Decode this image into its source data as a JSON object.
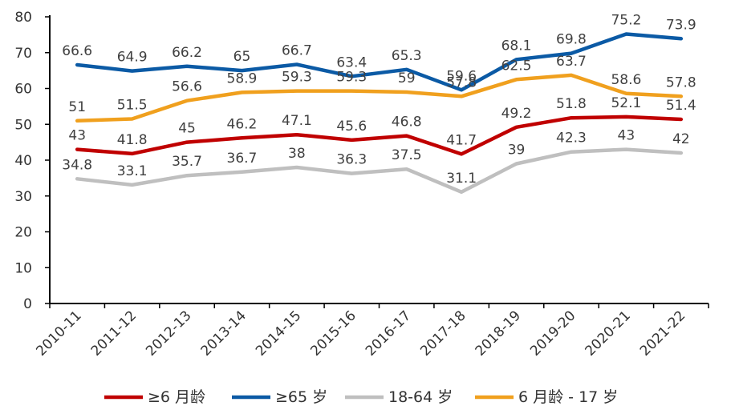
{
  "chart_data": {
    "type": "line",
    "title": "",
    "xlabel": "",
    "ylabel": "",
    "ylim": [
      0,
      80
    ],
    "yticks": [
      0,
      10,
      20,
      30,
      40,
      50,
      60,
      70,
      80
    ],
    "grid": false,
    "legend_position": "bottom",
    "categories": [
      "2010-11",
      "2011-12",
      "2012-13",
      "2013-14",
      "2014-15",
      "2015-16",
      "2016-17",
      "2017-18",
      "2018-19",
      "2019-20",
      "2020-21",
      "2021-22"
    ],
    "series": [
      {
        "name": "≥6 月龄",
        "color": "#c00000",
        "values": [
          43,
          41.8,
          45,
          46.2,
          47.1,
          45.6,
          46.8,
          41.7,
          49.2,
          51.8,
          52.1,
          51.4
        ]
      },
      {
        "name": "≥65 岁",
        "color": "#0b5aa5",
        "values": [
          66.6,
          64.9,
          66.2,
          65,
          66.7,
          63.4,
          65.3,
          59.6,
          68.1,
          69.8,
          75.2,
          73.9
        ]
      },
      {
        "name": "18-64 岁",
        "color": "#bfbfbf",
        "values": [
          34.8,
          33.1,
          35.7,
          36.7,
          38,
          36.3,
          37.5,
          31.1,
          39,
          42.3,
          43,
          42
        ]
      },
      {
        "name": "6 月龄 - 17 岁",
        "color": "#f0a01e",
        "values": [
          51,
          51.5,
          56.6,
          58.9,
          59.3,
          59.3,
          59,
          57.8,
          62.5,
          63.7,
          58.6,
          57.8
        ]
      }
    ]
  }
}
